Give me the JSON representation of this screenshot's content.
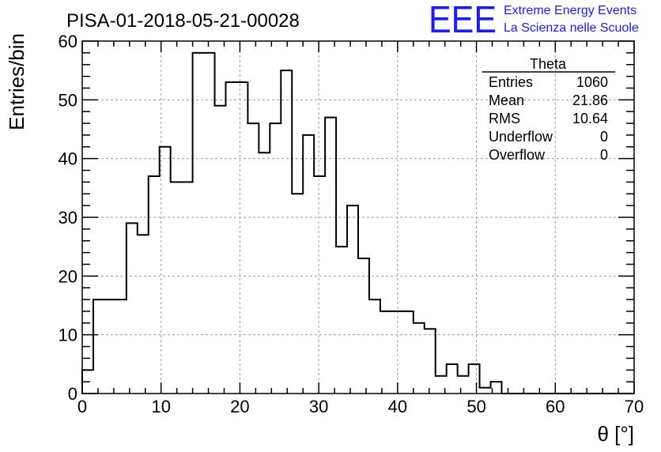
{
  "chart_data": {
    "type": "histogram",
    "title": "PISA-01-2018-05-21-00028",
    "xlabel": "θ [°]",
    "ylabel": "Entries/bin",
    "xlim": [
      0,
      70
    ],
    "ylim": [
      0,
      60
    ],
    "xticks": [
      "0",
      "10",
      "20",
      "30",
      "40",
      "50",
      "60",
      "70"
    ],
    "yticks": [
      "0",
      "10",
      "20",
      "30",
      "40",
      "50",
      "60"
    ],
    "grid": true,
    "bin_width": 1.4,
    "bin_edges_start": 0,
    "values": [
      4,
      16,
      16,
      16,
      29,
      27,
      37,
      42,
      36,
      36,
      58,
      58,
      49,
      53,
      53,
      46,
      41,
      46,
      55,
      34,
      44,
      37,
      47,
      25,
      32,
      23,
      16,
      14,
      14,
      14,
      12,
      11,
      3,
      5,
      3,
      5,
      1,
      2,
      0,
      0,
      0,
      0,
      0,
      0,
      0,
      0,
      0,
      0,
      0,
      0
    ],
    "series": [
      {
        "values_ref": "values"
      }
    ]
  },
  "stats_box": {
    "title": "Theta",
    "rows": [
      {
        "label": "Entries",
        "value": "1060"
      },
      {
        "label": "Mean",
        "value": "21.86"
      },
      {
        "label": "RMS",
        "value": "10.64"
      },
      {
        "label": "Underflow",
        "value": "0"
      },
      {
        "label": "Overflow",
        "value": "0"
      }
    ]
  },
  "logo": {
    "mark": "EEE",
    "line1": "Extreme Energy Events",
    "line2": "La Scienza nelle Scuole",
    "color": "#1a1aff"
  },
  "colors": {
    "histogram": "#000000",
    "grid": "#9a9a9a"
  }
}
